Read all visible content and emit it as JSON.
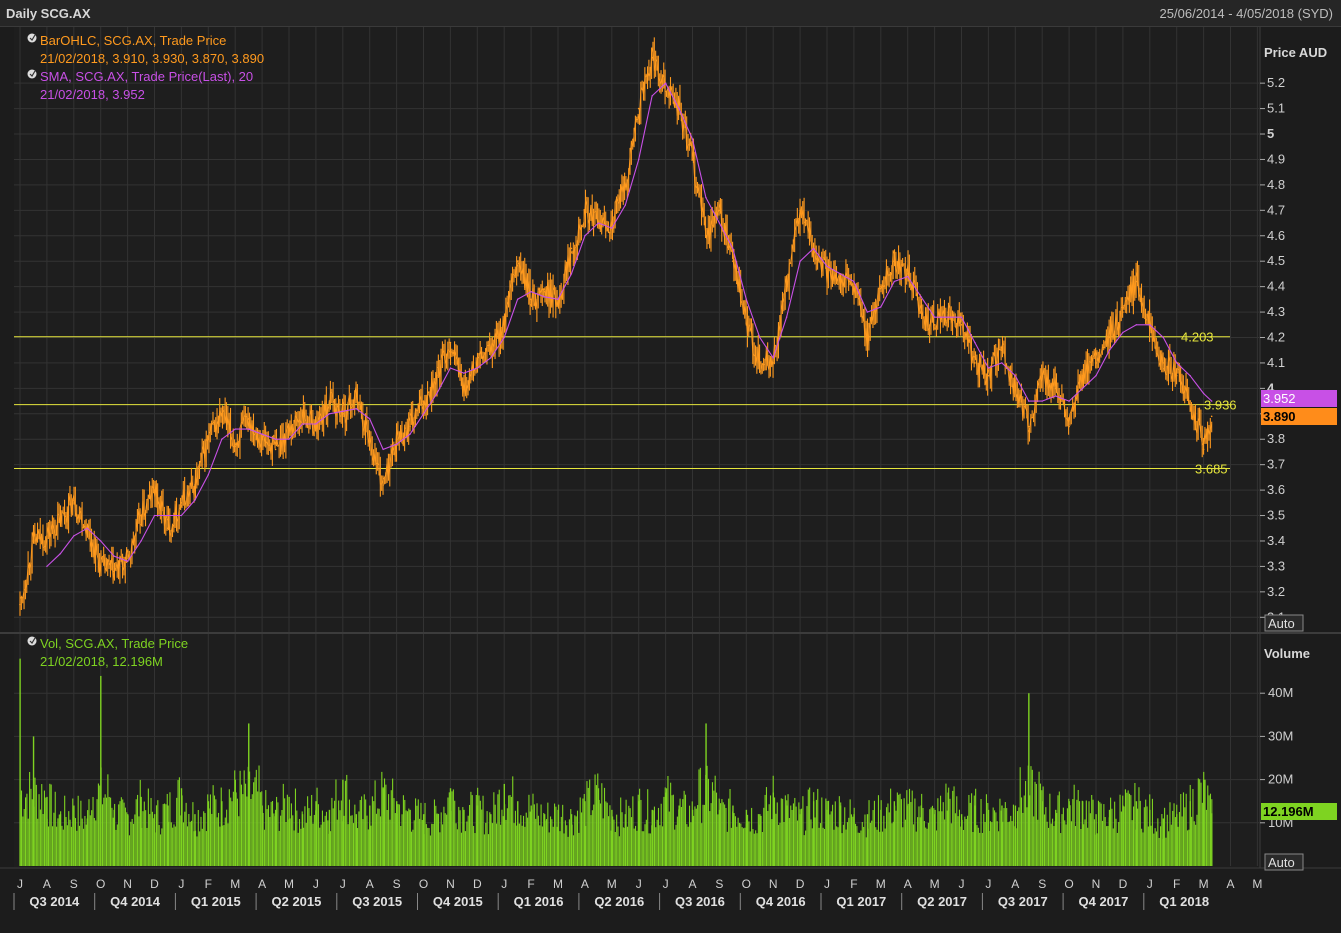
{
  "header": {
    "title": "Daily SCG.AX",
    "date_range": "25/06/2014 - 4/05/2018 (SYD)"
  },
  "legend": {
    "ohlc_line1": "BarOHLC, SCG.AX, Trade Price",
    "ohlc_line2": "21/02/2018, 3.910, 3.930, 3.870, 3.890",
    "sma_line1": "SMA, SCG.AX, Trade Price(Last),  20",
    "sma_line2": "21/02/2018, 3.952",
    "vol_line1": "Vol, SCG.AX, Trade Price",
    "vol_line2": "21/02/2018, 12.196M"
  },
  "buttons": {
    "price_auto": "Auto",
    "volume_auto": "Auto"
  },
  "colors": {
    "background": "#1c1c1c",
    "price": "#ff9a1e",
    "sma": "#c850e6",
    "volume": "#7ed321",
    "hline": "#e6e63c",
    "grid": "#333333"
  },
  "chart_data": [
    {
      "type": "line",
      "title": "Daily SCG.AX",
      "ylabel": "Price AUD",
      "ylim": [
        3.05,
        5.35
      ],
      "yticks": [
        3.1,
        3.2,
        3.3,
        3.4,
        3.5,
        3.6,
        3.7,
        3.8,
        3.9,
        4,
        4.1,
        4.2,
        4.3,
        4.4,
        4.5,
        4.6,
        4.7,
        4.8,
        4.9,
        5,
        5.1,
        5.2
      ],
      "ytick_labels": [
        "3.1",
        "3.2",
        "3.3",
        "3.4",
        "3.5",
        "3.6",
        "3.7",
        "3.8",
        "3.9",
        "4",
        "4.1",
        "4.2",
        "4.3",
        "4.4",
        "4.5",
        "4.6",
        "4.7",
        "4.8",
        "4.9",
        "5",
        "5.1",
        "5.2"
      ],
      "grid": true,
      "months": [
        "J",
        "A",
        "S",
        "O",
        "N",
        "D",
        "J",
        "F",
        "M",
        "A",
        "M",
        "J",
        "J",
        "A",
        "S",
        "O",
        "N",
        "D",
        "J",
        "F",
        "M",
        "A",
        "M",
        "J",
        "J",
        "A",
        "S",
        "O",
        "N",
        "D",
        "J",
        "F",
        "M",
        "A",
        "M",
        "J",
        "J",
        "A",
        "S",
        "O",
        "N",
        "D",
        "J",
        "F",
        "M",
        "A",
        "M"
      ],
      "quarters": [
        "Q3 2014",
        "Q4 2014",
        "Q1 2015",
        "Q2 2015",
        "Q3 2015",
        "Q4 2015",
        "Q1 2016",
        "Q2 2016",
        "Q3 2016",
        "Q4 2016",
        "Q1 2017",
        "Q2 2017",
        "Q3 2017",
        "Q4 2017",
        "Q1 2018"
      ],
      "series": [
        {
          "name": "BarOHLC, SCG.AX, Trade Price",
          "x": [
            0,
            0.5,
            1,
            1.5,
            2,
            2.5,
            3,
            3.5,
            4,
            4.5,
            5,
            5.5,
            6,
            6.5,
            7,
            7.5,
            8,
            8.5,
            9,
            9.5,
            10,
            10.5,
            11,
            11.5,
            12,
            12.5,
            13,
            13.5,
            14,
            14.5,
            15,
            15.5,
            16,
            16.5,
            17,
            17.5,
            18,
            18.5,
            19,
            19.5,
            20,
            20.5,
            21,
            21.5,
            22,
            22.5,
            23,
            23.5,
            24,
            24.5,
            25,
            25.5,
            26,
            26.5,
            27,
            27.5,
            28,
            28.5,
            29,
            29.5,
            30,
            30.5,
            31,
            31.5,
            32,
            32.5,
            33,
            33.5,
            34,
            34.5,
            35,
            35.5,
            36,
            36.5,
            37,
            37.5,
            38,
            38.5,
            39,
            39.5,
            40,
            40.5,
            41,
            41.5,
            42,
            42.5,
            43,
            43.5,
            44,
            44.3
          ],
          "y": [
            3.15,
            3.4,
            3.42,
            3.48,
            3.56,
            3.45,
            3.3,
            3.28,
            3.32,
            3.5,
            3.6,
            3.45,
            3.55,
            3.62,
            3.8,
            3.9,
            3.78,
            3.88,
            3.8,
            3.76,
            3.84,
            3.9,
            3.85,
            3.95,
            3.9,
            3.97,
            3.8,
            3.62,
            3.8,
            3.85,
            3.95,
            4.05,
            4.18,
            4.0,
            4.1,
            4.15,
            4.25,
            4.5,
            4.35,
            4.38,
            4.35,
            4.55,
            4.7,
            4.65,
            4.65,
            4.8,
            5.1,
            5.3,
            5.2,
            5.1,
            4.9,
            4.6,
            4.7,
            4.5,
            4.25,
            4.1,
            4.1,
            4.4,
            4.7,
            4.55,
            4.45,
            4.45,
            4.4,
            4.2,
            4.4,
            4.5,
            4.45,
            4.3,
            4.25,
            4.3,
            4.25,
            4.1,
            4.05,
            4.15,
            4.0,
            3.85,
            4.05,
            4.0,
            3.85,
            4.05,
            4.1,
            4.2,
            4.3,
            4.42,
            4.25,
            4.1,
            4.05,
            3.95,
            3.76,
            3.89
          ]
        },
        {
          "name": "SMA, SCG.AX, Trade Price(Last),  20",
          "x": [
            1,
            1.5,
            2,
            2.5,
            3,
            3.5,
            4,
            4.5,
            5,
            5.5,
            6,
            6.5,
            7,
            7.5,
            8,
            8.5,
            9,
            9.5,
            10,
            10.5,
            11,
            11.5,
            12,
            12.5,
            13,
            13.5,
            14,
            14.5,
            15,
            15.5,
            16,
            16.5,
            17,
            17.5,
            18,
            18.5,
            19,
            19.5,
            20,
            20.5,
            21,
            21.5,
            22,
            22.5,
            23,
            23.5,
            24,
            24.5,
            25,
            25.5,
            26,
            26.5,
            27,
            27.5,
            28,
            28.5,
            29,
            29.5,
            30,
            30.5,
            31,
            31.5,
            32,
            32.5,
            33,
            33.5,
            34,
            34.5,
            35,
            35.5,
            36,
            36.5,
            37,
            37.5,
            38,
            38.5,
            39,
            39.5,
            40,
            40.5,
            41,
            41.5,
            42,
            42.5,
            43,
            43.5,
            44,
            44.3
          ],
          "y": [
            3.3,
            3.35,
            3.42,
            3.45,
            3.4,
            3.34,
            3.32,
            3.4,
            3.5,
            3.5,
            3.5,
            3.56,
            3.66,
            3.8,
            3.84,
            3.84,
            3.82,
            3.8,
            3.8,
            3.86,
            3.86,
            3.9,
            3.91,
            3.92,
            3.88,
            3.76,
            3.78,
            3.82,
            3.9,
            3.98,
            4.08,
            4.06,
            4.08,
            4.12,
            4.2,
            4.35,
            4.38,
            4.36,
            4.35,
            4.45,
            4.6,
            4.65,
            4.63,
            4.72,
            4.9,
            5.15,
            5.2,
            5.1,
            4.98,
            4.75,
            4.65,
            4.55,
            4.35,
            4.2,
            4.12,
            4.28,
            4.5,
            4.55,
            4.48,
            4.45,
            4.42,
            4.3,
            4.32,
            4.42,
            4.44,
            4.36,
            4.28,
            4.28,
            4.28,
            4.18,
            4.08,
            4.1,
            4.05,
            3.95,
            3.95,
            3.97,
            3.95,
            4.0,
            4.05,
            4.15,
            4.22,
            4.25,
            4.25,
            4.2,
            4.1,
            4.05,
            3.98,
            3.95
          ]
        }
      ],
      "horizontal_lines": [
        4.203,
        3.936,
        3.685
      ],
      "horizontal_line_labels": [
        "4.203",
        "3.936",
        "3.685"
      ],
      "last_values": {
        "sma": "3.952",
        "price": "3.890"
      }
    },
    {
      "type": "bar",
      "ylabel": "Volume",
      "ylim": [
        0,
        50
      ],
      "yticks": [
        10,
        20,
        30,
        40
      ],
      "ytick_labels": [
        "10M",
        "20M",
        "30M",
        "40M"
      ],
      "grid": true,
      "series": [
        {
          "name": "Vol, SCG.AX, Trade Price",
          "x": [
            0,
            0.5,
            1,
            1.5,
            2,
            2.5,
            3,
            3.5,
            4,
            4.5,
            5,
            5.5,
            6,
            6.5,
            7,
            7.5,
            8,
            8.5,
            9,
            9.5,
            10,
            10.5,
            11,
            11.5,
            12,
            12.5,
            13,
            13.5,
            14,
            14.5,
            15,
            15.5,
            16,
            16.5,
            17,
            17.5,
            18,
            18.5,
            19,
            19.5,
            20,
            20.5,
            21,
            21.5,
            22,
            22.5,
            23,
            23.5,
            24,
            24.5,
            25,
            25.5,
            26,
            26.5,
            27,
            27.5,
            28,
            28.5,
            29,
            29.5,
            30,
            30.5,
            31,
            31.5,
            32,
            32.5,
            33,
            33.5,
            34,
            34.5,
            35,
            35.5,
            36,
            36.5,
            37,
            37.5,
            38,
            38.5,
            39,
            39.5,
            40,
            40.5,
            41,
            41.5,
            42,
            42.5,
            43,
            43.5,
            44,
            44.3
          ],
          "values": [
            48,
            30,
            16,
            12,
            14,
            11,
            44,
            13,
            12,
            16,
            12,
            14,
            18,
            12,
            15,
            15,
            20,
            33,
            14,
            13,
            16,
            12,
            15,
            13,
            20,
            12,
            14,
            18,
            15,
            13,
            12,
            12,
            18,
            13,
            14,
            12,
            19,
            15,
            14,
            12,
            13,
            12,
            15,
            18,
            13,
            12,
            15,
            13,
            17,
            14,
            13,
            33,
            13,
            14,
            13,
            12,
            17,
            14,
            12,
            15,
            13,
            14,
            12,
            12,
            13,
            15,
            14,
            14,
            12,
            17,
            12,
            14,
            13,
            14,
            14,
            40,
            15,
            13,
            15,
            15,
            12,
            13,
            14,
            15,
            13,
            11,
            12,
            15,
            20,
            12.196
          ]
        }
      ],
      "last_value": "12.196M"
    }
  ]
}
